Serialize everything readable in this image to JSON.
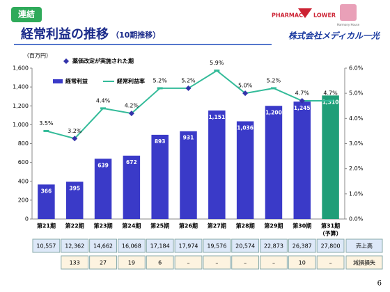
{
  "header": {
    "badge": "連結",
    "title": "経常利益の推移",
    "title_sub": "（10期推移）",
    "logo_left": "PHARMAC",
    "logo_left2": "LOWER",
    "logo_right": "Harmony House",
    "company": "株式会社メディカル一光"
  },
  "chart_data": {
    "type": "bar_line",
    "y_unit_label": "（百万円）",
    "categories": [
      "第21期",
      "第22期",
      "第23期",
      "第24期",
      "第25期",
      "第26期",
      "第27期",
      "第28期",
      "第29期",
      "第30期",
      "第31期"
    ],
    "budget_note": "（予算）",
    "series": [
      {
        "name": "経常利益",
        "type": "bar",
        "color": "#3a3ac8",
        "colors": [
          "#3a3ac8",
          "#3a3ac8",
          "#3a3ac8",
          "#3a3ac8",
          "#3a3ac8",
          "#3a3ac8",
          "#3a3ac8",
          "#3a3ac8",
          "#3a3ac8",
          "#3a3ac8",
          "#1f9e78"
        ],
        "values": [
          366,
          395,
          639,
          672,
          893,
          931,
          1151,
          1036,
          1200,
          1245,
          1310
        ],
        "value_labels": [
          "366",
          "395",
          "639",
          "672",
          "893",
          "931",
          "1,151",
          "1,036",
          "1,200",
          "1,245",
          "1,310"
        ]
      },
      {
        "name": "経常利益率",
        "type": "line",
        "axis": "y2",
        "color": "#33bb99",
        "values": [
          3.5,
          3.2,
          4.4,
          4.2,
          5.2,
          5.2,
          5.9,
          5.0,
          5.2,
          4.7,
          4.7
        ],
        "value_labels": [
          "3.5%",
          "3.2%",
          "4.4%",
          "4.2%",
          "5.2%",
          "5.2%",
          "5.9%",
          "5.0%",
          "5.2%",
          "4.7%",
          "4.7%"
        ],
        "markers": [
          "dash",
          "diamond",
          "dash",
          "diamond",
          "dash",
          "diamond",
          "dash",
          "diamond",
          "dash",
          "diamond",
          "dash"
        ]
      }
    ],
    "marker_legend": "薬価改定が実施された期",
    "marker_color": "#3333aa",
    "ylim": [
      0,
      1600
    ],
    "yticks": [
      0,
      200,
      400,
      600,
      800,
      {
        "value": 1000,
        "label": "1,000"
      },
      {
        "value": 1200,
        "label": "1,200"
      },
      {
        "value": 1400,
        "label": "1,400"
      },
      {
        "value": 1600,
        "label": "1,600"
      }
    ],
    "y2lim": [
      0,
      6
    ],
    "y2ticks": [
      {
        "value": 0,
        "label": "0.0%"
      },
      {
        "value": 1,
        "label": "1.0%"
      },
      {
        "value": 2,
        "label": "2.0%"
      },
      {
        "value": 3,
        "label": "3.0%"
      },
      {
        "value": 4,
        "label": "4.0%"
      },
      {
        "value": 5,
        "label": "5.0%"
      },
      {
        "value": 6,
        "label": "6.0%"
      }
    ]
  },
  "table": {
    "rows": [
      {
        "label": "売上高",
        "values": [
          "10,557",
          "12,362",
          "14,662",
          "16,068",
          "17,184",
          "17,974",
          "19,576",
          "20,574",
          "22,873",
          "26,387",
          "27,800"
        ]
      },
      {
        "label": "減損損失",
        "values": [
          "133",
          "27",
          "19",
          "6",
          "–",
          "–",
          "–",
          "–",
          "10",
          "–"
        ]
      }
    ]
  },
  "page_number": "6"
}
